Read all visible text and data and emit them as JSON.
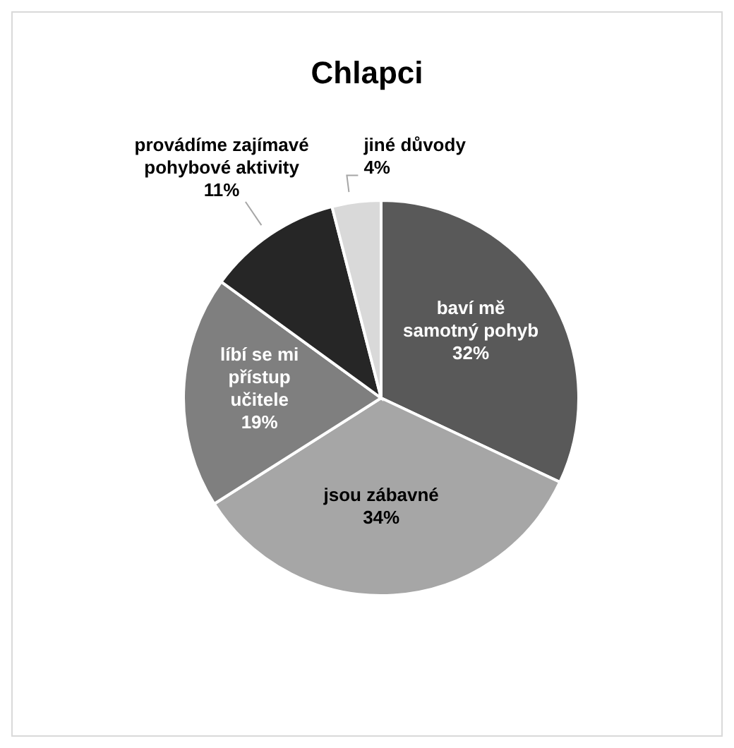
{
  "chart_data": {
    "type": "pie",
    "title": "Chlapci",
    "categories": [
      "baví mě samotný pohyb",
      "jsou zábavné",
      "líbí se mi přístup učitele",
      "provádíme zajímavé pohybové aktivity",
      "jiné důvody"
    ],
    "values": [
      32,
      34,
      19,
      11,
      4
    ],
    "colors": [
      "#595959",
      "#a6a6a6",
      "#7f7f7f",
      "#262626",
      "#d9d9d9"
    ],
    "value_labels": [
      "32%",
      "34%",
      "19%",
      "11%",
      "4%"
    ],
    "legend": false
  }
}
